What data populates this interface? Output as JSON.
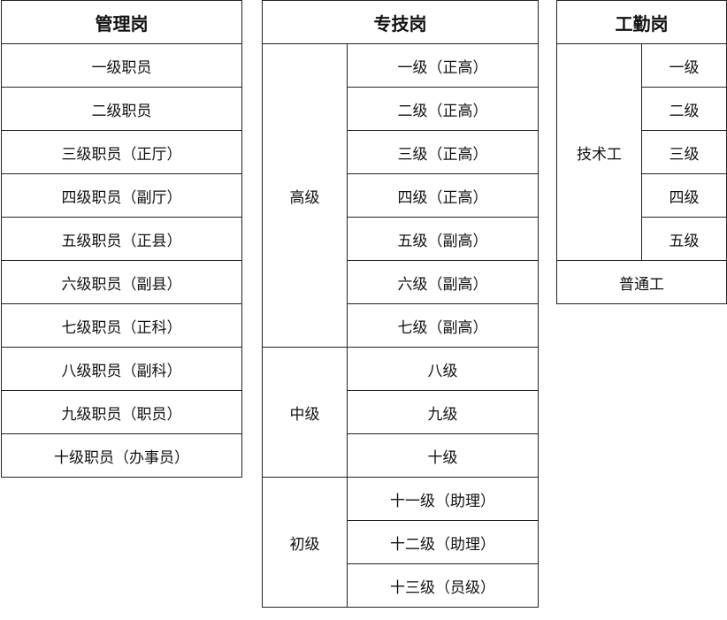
{
  "management": {
    "title": "管理岗",
    "rows": [
      "一级职员",
      "二级职员",
      "三级职员（正厅）",
      "四级职员（副厅）",
      "五级职员（正县）",
      "六级职员（副县）",
      "七级职员（正科）",
      "八级职员（副科）",
      "九级职员（职员）",
      "十级职员（办事员）"
    ]
  },
  "professional": {
    "title": "专技岗",
    "groups": [
      {
        "name": "高级",
        "levels": [
          "一级（正高）",
          "二级（正高）",
          "三级（正高）",
          "四级（正高）",
          "五级（副高）",
          "六级（副高）",
          "七级（副高）"
        ]
      },
      {
        "name": "中级",
        "levels": [
          "八级",
          "九级",
          "十级"
        ]
      },
      {
        "name": "初级",
        "levels": [
          "十一级（助理）",
          "十二级（助理）",
          "十三级（员级）"
        ]
      }
    ]
  },
  "worker": {
    "title": "工勤岗",
    "skilled": {
      "name": "技术工",
      "levels": [
        "一级",
        "二级",
        "三级",
        "四级",
        "五级"
      ]
    },
    "general": "普通工"
  }
}
